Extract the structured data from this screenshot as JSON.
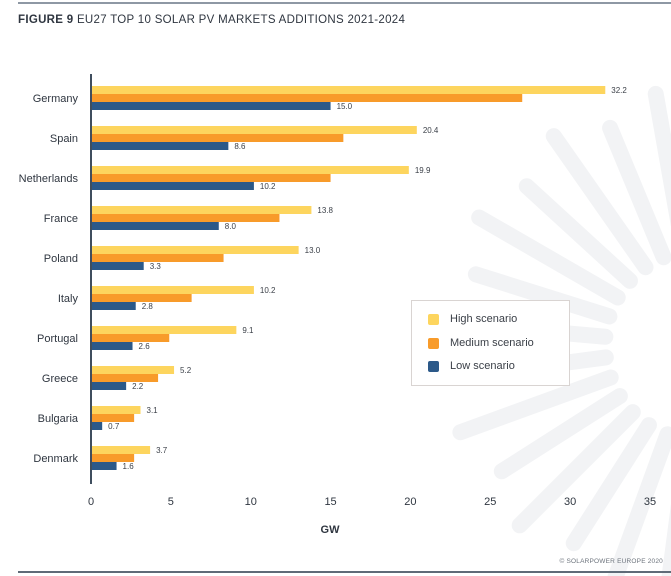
{
  "figure": {
    "label": "FIGURE 9",
    "title": "EU27 TOP 10 SOLAR PV MARKETS ADDITIONS 2021-2024",
    "credit": "© SOLARPOWER EUROPE 2020"
  },
  "colors": {
    "high": "#fdd55e",
    "medium": "#f89b2a",
    "low": "#2c5989",
    "axis": "#3f4e5e",
    "text": "#2f3640",
    "rays": "#f2f3f5"
  },
  "legend": {
    "items": [
      {
        "label": "High scenario",
        "key": "high"
      },
      {
        "label": "Medium scenario",
        "key": "medium"
      },
      {
        "label": "Low scenario",
        "key": "low"
      }
    ]
  },
  "chart_data": {
    "type": "bar",
    "orientation": "horizontal",
    "title": "EU27 TOP 10 SOLAR PV MARKETS ADDITIONS 2021-2024",
    "xlabel": "GW",
    "ylabel": "",
    "xlim": [
      0,
      35
    ],
    "xticks": [
      0,
      5,
      10,
      15,
      20,
      25,
      30,
      35
    ],
    "grid": false,
    "legend_position": "center-right",
    "categories": [
      "Germany",
      "Spain",
      "Netherlands",
      "France",
      "Poland",
      "Italy",
      "Portugal",
      "Greece",
      "Bulgaria",
      "Denmark"
    ],
    "series": [
      {
        "name": "High scenario",
        "key": "high",
        "values": [
          32.2,
          20.4,
          19.9,
          13.8,
          13.0,
          10.2,
          9.1,
          5.2,
          3.1,
          3.7
        ],
        "labeled": true
      },
      {
        "name": "Medium scenario",
        "key": "medium",
        "values": [
          27.0,
          15.8,
          15.0,
          11.8,
          8.3,
          6.3,
          4.9,
          4.2,
          2.7,
          2.7
        ],
        "labeled": false
      },
      {
        "name": "Low scenario",
        "key": "low",
        "values": [
          15.0,
          8.6,
          10.2,
          8.0,
          3.3,
          2.8,
          2.6,
          2.2,
          0.7,
          1.6
        ],
        "labeled": true
      }
    ],
    "data_labels": {
      "high": [
        "32.2",
        "20.4",
        "19.9",
        "13.8",
        "13.0",
        "10.2",
        "9.1",
        "5.2",
        "3.1",
        "3.7"
      ],
      "low": [
        "15.0",
        "8.6",
        "10.2",
        "8.0",
        "3.3",
        "2.8",
        "2.6",
        "2.2",
        "0.7",
        "1.6"
      ]
    }
  }
}
